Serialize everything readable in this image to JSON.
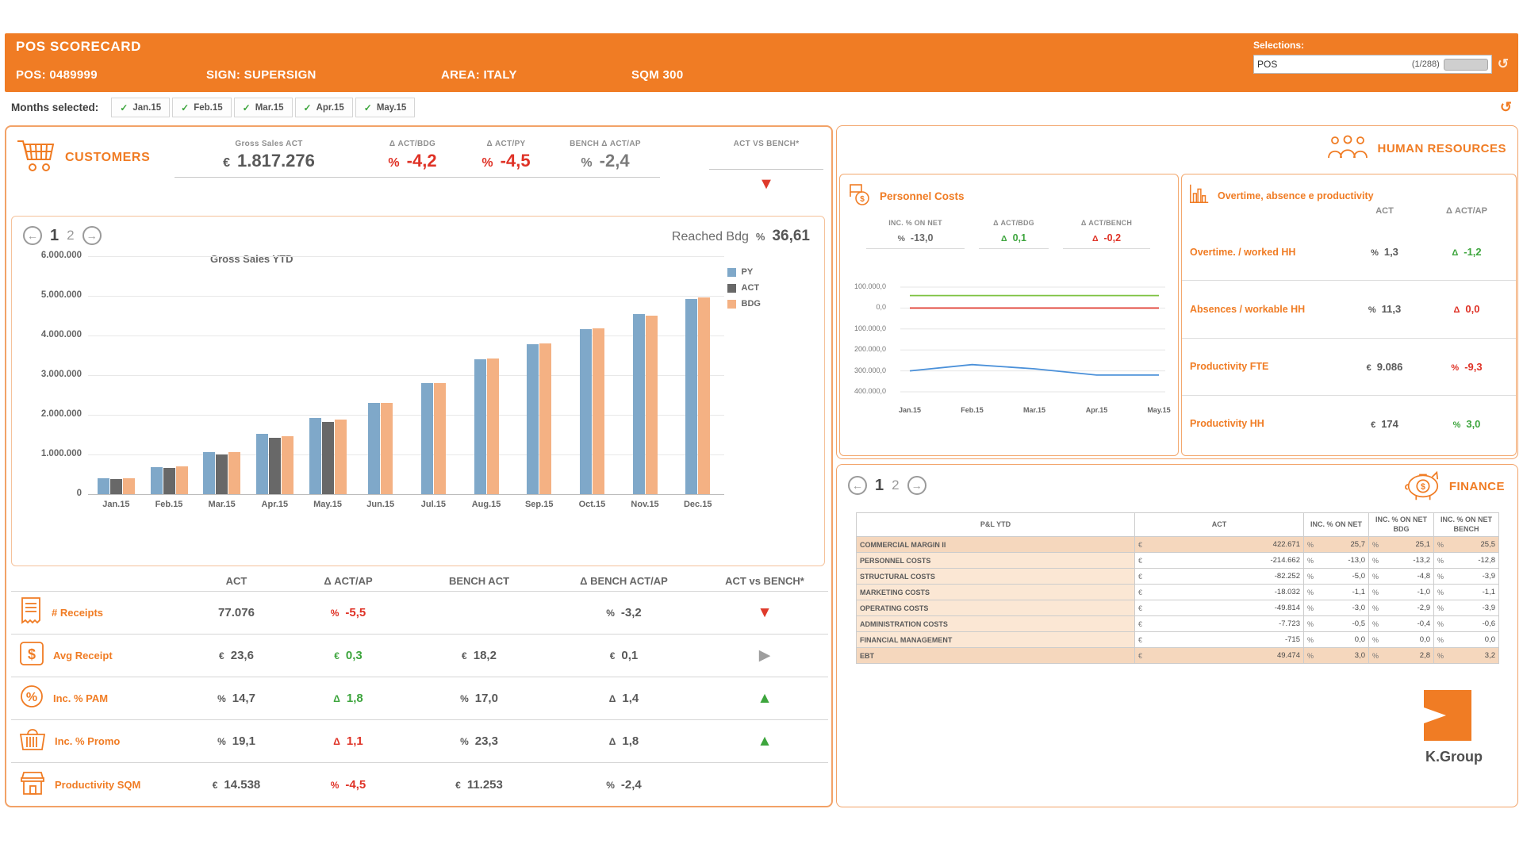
{
  "colors": {
    "orange": "#F07C24",
    "red": "#DF3226",
    "green": "#3DA53D",
    "bar_py": "#7FA8C9",
    "bar_act": "#686868",
    "bar_bdg": "#F4B183"
  },
  "header": {
    "title": "POS SCORECARD",
    "pos": "POS: 0489999",
    "sign": "SIGN: SUPERSIGN",
    "area": "AREA: ITALY",
    "sqm": "SQM  300",
    "selections_label": "Selections:",
    "selection_name": "POS",
    "selection_count": "(1/288)"
  },
  "months_bar": {
    "label": "Months selected:",
    "months": [
      "Jan.15",
      "Feb.15",
      "Mar.15",
      "Apr.15",
      "May.15"
    ]
  },
  "customers": {
    "title": "CUSTOMERS",
    "kpi_headers": [
      "Gross Sales ACT",
      "Δ ACT/BDG",
      "Δ ACT/PY",
      "BENCH Δ ACT/AP",
      "ACT VS BENCH*"
    ],
    "kpi_values": [
      {
        "prefix": "€",
        "value": "1.817.276",
        "color": "gray"
      },
      {
        "prefix": "%",
        "value": "-4,2",
        "color": "red"
      },
      {
        "prefix": "%",
        "value": "-4,5",
        "color": "red"
      },
      {
        "prefix": "%",
        "value": "-2,4",
        "color": "grayv"
      }
    ],
    "bench_indicator": "down-red",
    "pagination": [
      "1",
      "2"
    ],
    "reached_label": "Reached Bdg",
    "reached_pct": "%",
    "reached_value": "36,61",
    "kpi_table": {
      "headers": [
        "ACT",
        "Δ ACT/AP",
        "BENCH ACT",
        "Δ BENCH ACT/AP",
        "ACT vs BENCH*"
      ],
      "rows": [
        {
          "label": "# Receipts",
          "icon": "receipt-icon",
          "act": {
            "prefix": "",
            "value": "77.076"
          },
          "delta": {
            "prefix": "%",
            "value": "-5,5",
            "color": "red"
          },
          "bench": {
            "prefix": "",
            "value": ""
          },
          "bench_delta": {
            "prefix": "%",
            "value": "-3,2"
          },
          "indicator": "down-red"
        },
        {
          "label": "Avg Receipt",
          "icon": "dollar-icon",
          "act": {
            "prefix": "€",
            "value": "23,6"
          },
          "delta": {
            "prefix": "€",
            "value": "0,3",
            "color": "green"
          },
          "bench": {
            "prefix": "€",
            "value": "18,2"
          },
          "bench_delta": {
            "prefix": "€",
            "value": "0,1"
          },
          "indicator": "right-gray"
        },
        {
          "label": "Inc. % PAM",
          "icon": "percent-icon",
          "act": {
            "prefix": "%",
            "value": "14,7"
          },
          "delta": {
            "prefix": "Δ",
            "value": "1,8",
            "color": "green"
          },
          "bench": {
            "prefix": "%",
            "value": "17,0"
          },
          "bench_delta": {
            "prefix": "Δ",
            "value": "1,4"
          },
          "indicator": "up-green"
        },
        {
          "label": "Inc. % Promo",
          "icon": "basket-icon",
          "act": {
            "prefix": "%",
            "value": "19,1"
          },
          "delta": {
            "prefix": "Δ",
            "value": "1,1",
            "color": "red"
          },
          "bench": {
            "prefix": "%",
            "value": "23,3"
          },
          "bench_delta": {
            "prefix": "Δ",
            "value": "1,8"
          },
          "indicator": "up-green"
        },
        {
          "label": "Productivity SQM",
          "icon": "store-icon",
          "act": {
            "prefix": "€",
            "value": "14.538"
          },
          "delta": {
            "prefix": "%",
            "value": "-4,5",
            "color": "red"
          },
          "bench": {
            "prefix": "€",
            "value": "11.253"
          },
          "bench_delta": {
            "prefix": "%",
            "value": "-2,4"
          },
          "indicator": "none"
        }
      ]
    }
  },
  "chart_data": [
    {
      "type": "bar",
      "title": "Gross Sales YTD",
      "categories": [
        "Jan.15",
        "Feb.15",
        "Mar.15",
        "Apr.15",
        "May.15",
        "Jun.15",
        "Jul.15",
        "Aug.15",
        "Sep.15",
        "Oct.15",
        "Nov.15",
        "Dec.15"
      ],
      "series": [
        {
          "name": "PY",
          "color": "#7FA8C9",
          "values": [
            400000,
            680000,
            1050000,
            1520000,
            1920000,
            2300000,
            2790000,
            3400000,
            3780000,
            4170000,
            4540000,
            4910000
          ]
        },
        {
          "name": "ACT",
          "color": "#686868",
          "values": [
            380000,
            660000,
            1000000,
            1420000,
            1817276,
            null,
            null,
            null,
            null,
            null,
            null,
            null
          ]
        },
        {
          "name": "BDG",
          "color": "#F4B183",
          "values": [
            400000,
            690000,
            1060000,
            1460000,
            1870000,
            2300000,
            2800000,
            3410000,
            3790000,
            4180000,
            4500000,
            4960000
          ]
        }
      ],
      "ylim": [
        0,
        6000000
      ],
      "yticks": [
        "6.000.000",
        "5.000.000",
        "4.000.000",
        "3.000.000",
        "2.000.000",
        "1.000.000",
        "0"
      ],
      "legend_position": "right",
      "grid": true
    },
    {
      "type": "line",
      "title": "",
      "x": [
        "Jan.15",
        "Feb.15",
        "Mar.15",
        "Apr.15",
        "May.15"
      ],
      "series": [
        {
          "name": "upper",
          "color": "#7DC242",
          "values": [
            60000,
            60000,
            60000,
            60000,
            60000
          ]
        },
        {
          "name": "zero",
          "color": "#E03C31",
          "values": [
            0,
            0,
            0,
            0,
            0
          ]
        },
        {
          "name": "actual",
          "color": "#4A90D9",
          "values": [
            -300000,
            -270000,
            -290000,
            -320000,
            -320000
          ]
        }
      ],
      "ylim": [
        -400000,
        100000
      ],
      "yticks": [
        "100.000,0",
        "0,0",
        "100.000,0",
        "200.000,0",
        "300.000,0",
        "400.000,0"
      ],
      "ytick_values": [
        100000,
        0,
        -100000,
        -200000,
        -300000,
        -400000
      ],
      "grid": true
    }
  ],
  "human_resources": {
    "title": "HUMAN RESOURCES",
    "personnel": {
      "title": "Personnel Costs",
      "headers": [
        "INC. % ON NET",
        "Δ ACT/BDG",
        "Δ ACT/BENCH"
      ],
      "values": [
        {
          "prefix": "%",
          "value": "-13,0",
          "color": "gray"
        },
        {
          "prefix": "Δ",
          "value": "0,1",
          "color": "green"
        },
        {
          "prefix": "Δ",
          "value": "-0,2",
          "color": "red"
        }
      ]
    },
    "overtime": {
      "title": "Overtime, absence e productivity",
      "headers": [
        "ACT",
        "Δ ACT/AP"
      ],
      "rows": [
        {
          "label": "Overtime. / worked HH",
          "act_prefix": "%",
          "act": "1,3",
          "delta_prefix": "Δ",
          "delta": "-1,2",
          "delta_color": "green"
        },
        {
          "label": "Absences / workable HH",
          "act_prefix": "%",
          "act": "11,3",
          "delta_prefix": "Δ",
          "delta": "0,0",
          "delta_color": "red"
        },
        {
          "label": "Productivity FTE",
          "act_prefix": "€",
          "act": "9.086",
          "delta_prefix": "%",
          "delta": "-9,3",
          "delta_color": "red"
        },
        {
          "label": "Productivity HH",
          "act_prefix": "€",
          "act": "174",
          "delta_prefix": "%",
          "delta": "3,0",
          "delta_color": "green"
        }
      ]
    }
  },
  "finance": {
    "title": "FINANCE",
    "pagination": [
      "1",
      "2"
    ],
    "logo_text": "K.Group",
    "table": {
      "euro_symbol": "€",
      "pct_symbol": "%",
      "headers": [
        "P&L YTD",
        "ACT",
        "INC. % ON NET",
        "INC. % ON NET BDG",
        "INC. % ON NET BENCH"
      ],
      "rows": [
        {
          "label": "COMMERCIAL MARGIN II",
          "act": "422.671",
          "net": "25,7",
          "bdg": "25,1",
          "bench": "25,5",
          "highlight": true
        },
        {
          "label": "PERSONNEL COSTS",
          "act": "-214.662",
          "net": "-13,0",
          "bdg": "-13,2",
          "bench": "-12,8",
          "highlight": false
        },
        {
          "label": "STRUCTURAL COSTS",
          "act": "-82.252",
          "net": "-5,0",
          "bdg": "-4,8",
          "bench": "-3,9",
          "highlight": false
        },
        {
          "label": "MARKETING COSTS",
          "act": "-18.032",
          "net": "-1,1",
          "bdg": "-1,0",
          "bench": "-1,1",
          "highlight": false
        },
        {
          "label": "OPERATING COSTS",
          "act": "-49.814",
          "net": "-3,0",
          "bdg": "-2,9",
          "bench": "-3,9",
          "highlight": false
        },
        {
          "label": "ADMINISTRATION COSTS",
          "act": "-7.723",
          "net": "-0,5",
          "bdg": "-0,4",
          "bench": "-0,6",
          "highlight": false
        },
        {
          "label": "FINANCIAL MANAGEMENT",
          "act": "-715",
          "net": "0,0",
          "bdg": "0,0",
          "bench": "0,0",
          "highlight": false
        },
        {
          "label": "EBT",
          "act": "49.474",
          "net": "3,0",
          "bdg": "2,8",
          "bench": "3,2",
          "highlight": true
        }
      ]
    }
  }
}
